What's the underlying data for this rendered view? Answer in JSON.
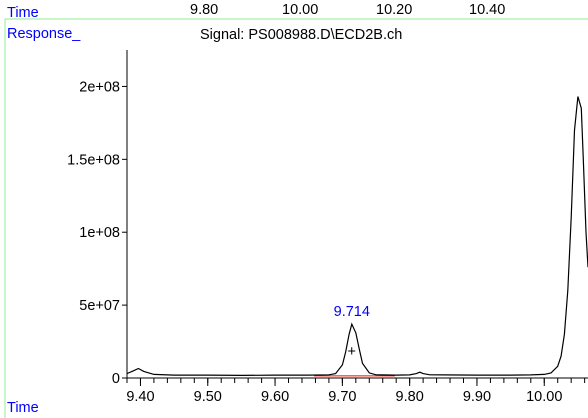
{
  "top_axis": {
    "label": "Time",
    "ticks": [
      "9.80",
      "10.00",
      "10.20",
      "10.40"
    ]
  },
  "chart_data": {
    "type": "line",
    "title": "Signal: PS008988.D\\ECD2B.ch",
    "ylabel": "Response_",
    "xlabel": "Time",
    "xlim": [
      9.38,
      10.065
    ],
    "ylim": [
      0,
      225000000
    ],
    "x_ticks": [
      "9.40",
      "9.50",
      "9.60",
      "9.70",
      "9.80",
      "9.90",
      "10.00"
    ],
    "y_ticks": [
      "0",
      "5e+07",
      "1e+08",
      "1.5e+08",
      "2e+08"
    ],
    "peak_label": "9.714",
    "peak_marker": "+",
    "x": [
      9.38,
      9.39,
      9.397,
      9.405,
      9.42,
      9.45,
      9.5,
      9.55,
      9.6,
      9.65,
      9.68,
      9.69,
      9.7,
      9.705,
      9.71,
      9.714,
      9.72,
      9.725,
      9.73,
      9.74,
      9.75,
      9.78,
      9.8,
      9.81,
      9.815,
      9.82,
      9.83,
      9.85,
      9.9,
      9.95,
      9.98,
      10.0,
      10.01,
      10.02,
      10.025,
      10.03,
      10.035,
      10.04,
      10.045,
      10.05,
      10.055,
      10.058,
      10.062,
      10.065
    ],
    "y": [
      3000000,
      5000000,
      6500000,
      4500000,
      2500000,
      2000000,
      2000000,
      1800000,
      2000000,
      2000000,
      2200000,
      3000000,
      9000000,
      18000000,
      30000000,
      37000000,
      31000000,
      20000000,
      10000000,
      3500000,
      2200000,
      2000000,
      2100000,
      3000000,
      4000000,
      3000000,
      2200000,
      2100000,
      2000000,
      2000000,
      2100000,
      2500000,
      3500000,
      8000000,
      15000000,
      30000000,
      60000000,
      110000000,
      170000000,
      193000000,
      185000000,
      150000000,
      100000000,
      76000000
    ],
    "baseline": {
      "x": [
        9.658,
        9.778
      ],
      "y": [
        1500000,
        1500000
      ],
      "color": "#ff0000"
    },
    "grid": false
  },
  "colors": {
    "axis": "#000000",
    "frame": "#90ee90",
    "label_blue": "#0000ff",
    "trace": "#000000",
    "baseline": "#ff0000"
  }
}
